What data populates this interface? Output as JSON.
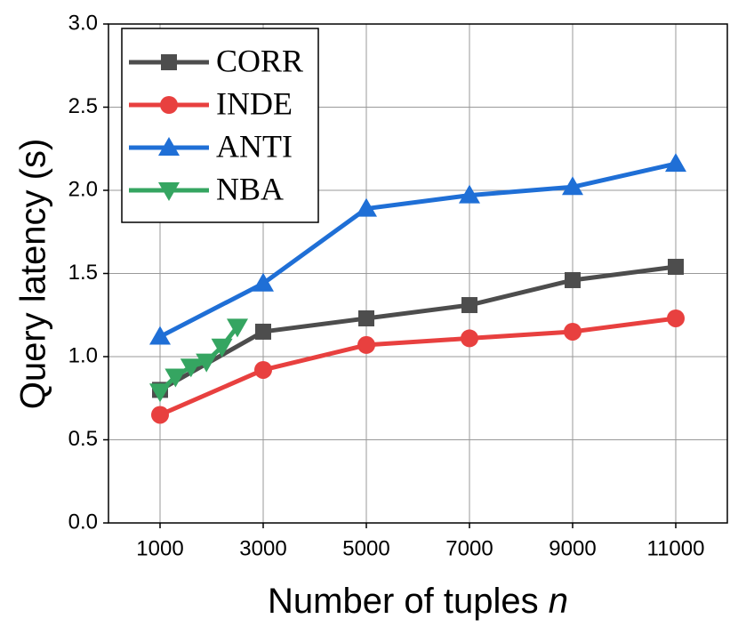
{
  "chart_data": {
    "type": "line",
    "xlabel": "Number of tuples",
    "xlabel_var": "n",
    "ylabel": "Query latency (s)",
    "xlim": [
      0,
      12000
    ],
    "xticks": [
      1000,
      3000,
      5000,
      7000,
      9000,
      11000
    ],
    "ylim": [
      0,
      3
    ],
    "yticks": [
      {
        "value": 0,
        "label": "0.0"
      },
      0.5,
      {
        "value": 1,
        "label": "1.0"
      },
      1.5,
      {
        "value": 2,
        "label": "2.0"
      },
      2.5,
      {
        "value": 3,
        "label": "3.0"
      }
    ],
    "grid": true,
    "legend": "upper-left",
    "series": [
      {
        "name": "CORR",
        "color": "#4d4d4d",
        "marker": "square",
        "x": [
          1000,
          3000,
          5000,
          7000,
          9000,
          11000
        ],
        "values": [
          0.8,
          1.15,
          1.23,
          1.31,
          1.46,
          1.54
        ]
      },
      {
        "name": "INDE",
        "color": "#e8403f",
        "marker": "circle",
        "x": [
          1000,
          3000,
          5000,
          7000,
          9000,
          11000
        ],
        "values": [
          0.65,
          0.92,
          1.07,
          1.11,
          1.15,
          1.23
        ]
      },
      {
        "name": "ANTI",
        "color": "#1f6fd6",
        "marker": "triangle-up",
        "x": [
          1000,
          3000,
          5000,
          7000,
          9000,
          11000
        ],
        "values": [
          1.12,
          1.44,
          1.89,
          1.97,
          2.02,
          2.16
        ]
      },
      {
        "name": "NBA",
        "color": "#35a561",
        "marker": "triangle-down",
        "x": [
          1000,
          1300,
          1600,
          1900,
          2200,
          2500
        ],
        "values": [
          0.79,
          0.88,
          0.94,
          0.97,
          1.06,
          1.18
        ]
      }
    ]
  }
}
